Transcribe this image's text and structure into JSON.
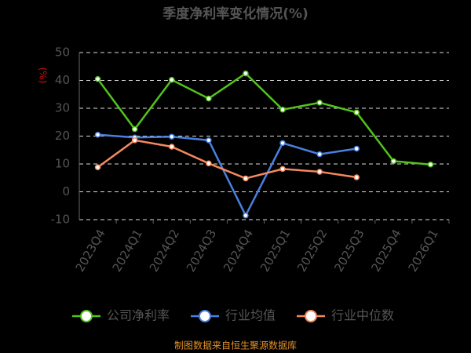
{
  "chart_data": {
    "type": "line",
    "title": "季度净利率变化情况(%)",
    "y_label": "(%)",
    "categories": [
      "2023Q4",
      "2024Q1",
      "2024Q2",
      "2024Q3",
      "2024Q4",
      "2025Q1",
      "2025Q2",
      "2025Q3",
      "2025Q4",
      "2026Q1"
    ],
    "series": [
      {
        "name": "公司净利率",
        "color": "#52c41a",
        "values": [
          40.5,
          22.5,
          40.2,
          33.5,
          42.5,
          29.5,
          32,
          28.5,
          11,
          9.8
        ]
      },
      {
        "name": "行业均值",
        "color": "#4a7fe0",
        "values": [
          20.5,
          19.5,
          19.8,
          18.5,
          -8.5,
          17.5,
          13.5,
          15.5,
          null,
          null
        ]
      },
      {
        "name": "行业中位数",
        "color": "#f4895f",
        "values": [
          8.8,
          18.5,
          16.2,
          10.2,
          4.8,
          8.2,
          7.2,
          5.2,
          null,
          null
        ]
      }
    ],
    "ylim": [
      -10,
      50
    ],
    "yticks": [
      -10,
      0,
      10,
      20,
      30,
      40,
      50
    ],
    "grid": true,
    "source": "制图数据来自恒生聚源数据库"
  }
}
